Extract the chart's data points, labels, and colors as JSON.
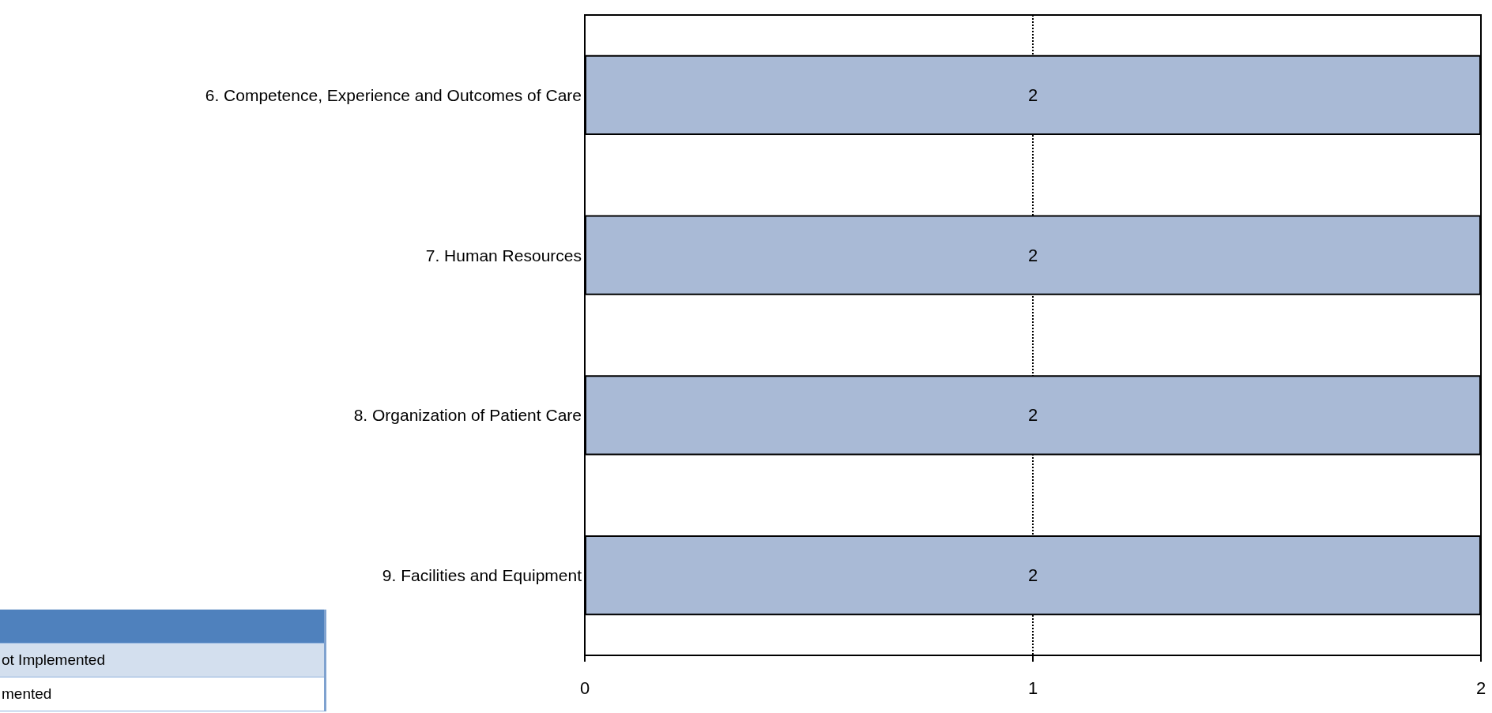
{
  "chart_data": {
    "type": "bar",
    "orientation": "horizontal",
    "categories": [
      "6. Competence, Experience and Outcomes of Care",
      "7. Human Resources",
      "8. Organization of Patient Care",
      "9. Facilities and Equipment"
    ],
    "values": [
      2,
      2,
      2,
      2
    ],
    "color": "#a9bad6",
    "data_labels": true,
    "xlim": [
      0,
      2
    ],
    "xticks": [
      0,
      1,
      2
    ],
    "grid": "x",
    "annotations": [
      "ot Implemented",
      "mented"
    ]
  }
}
